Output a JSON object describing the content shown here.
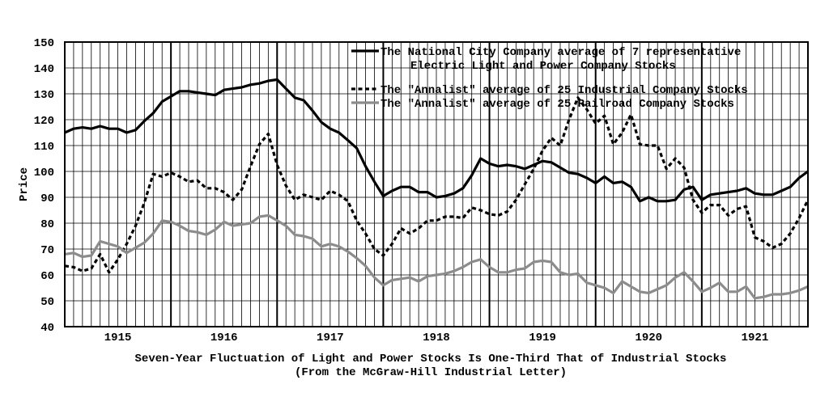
{
  "chart_data": {
    "type": "line",
    "title": "",
    "caption": [
      "Seven-Year Fluctuation of Light and Power Stocks Is One-Third That of Industrial Stocks",
      "(From the McGraw-Hill Industrial Letter)"
    ],
    "ylabel": "Price",
    "xlabel": "",
    "ylim": [
      40,
      150
    ],
    "xlim": [
      1914.5,
      1921.5
    ],
    "y_ticks": [
      "40",
      "50",
      "60",
      "70",
      "80",
      "90",
      "100",
      "110",
      "120",
      "130",
      "140",
      "150"
    ],
    "x_ticks": [
      "1915",
      "1916",
      "1917",
      "1918",
      "1919",
      "1920",
      "1921"
    ],
    "grid": true,
    "legend_position": "top-right",
    "x": [
      1914.5,
      1914.583,
      1914.667,
      1914.75,
      1914.833,
      1914.917,
      1915.0,
      1915.083,
      1915.167,
      1915.25,
      1915.333,
      1915.417,
      1915.5,
      1915.583,
      1915.667,
      1915.75,
      1915.833,
      1915.917,
      1916.0,
      1916.083,
      1916.167,
      1916.25,
      1916.333,
      1916.417,
      1916.5,
      1916.583,
      1916.667,
      1916.75,
      1916.833,
      1916.917,
      1917.0,
      1917.083,
      1917.167,
      1917.25,
      1917.333,
      1917.417,
      1917.5,
      1917.583,
      1917.667,
      1917.75,
      1917.833,
      1917.917,
      1918.0,
      1918.083,
      1918.167,
      1918.25,
      1918.333,
      1918.417,
      1918.5,
      1918.583,
      1918.667,
      1918.75,
      1918.833,
      1918.917,
      1919.0,
      1919.083,
      1919.167,
      1919.25,
      1919.333,
      1919.417,
      1919.5,
      1919.583,
      1919.667,
      1919.75,
      1919.833,
      1919.917,
      1920.0,
      1920.083,
      1920.167,
      1920.25,
      1920.333,
      1920.417,
      1920.5,
      1920.583,
      1920.667,
      1920.75,
      1920.833,
      1920.917,
      1921.0,
      1921.083,
      1921.167,
      1921.25,
      1921.333,
      1921.417,
      1921.5
    ],
    "series": [
      {
        "name": "The National City Company average of 7 representative Electric Light and Power Company Stocks",
        "legend_lines": [
          "The National City Company average of 7 representative",
          "Electric Light and Power Company Stocks"
        ],
        "color": "#000000",
        "dash": "solid",
        "values": [
          115,
          116.5,
          117,
          116.5,
          117.5,
          116.5,
          116.5,
          115,
          116,
          119.5,
          122.5,
          127,
          129,
          131,
          131,
          130.5,
          130,
          129.5,
          131.5,
          132,
          132.5,
          133.5,
          134,
          135,
          135.5,
          132,
          128.5,
          127.5,
          123.5,
          119,
          116.5,
          115,
          112,
          109,
          102,
          96,
          90.5,
          92.5,
          94,
          94,
          92,
          92,
          90,
          90.5,
          91.5,
          93.5,
          98.5,
          105,
          103,
          102,
          102.5,
          102,
          101,
          102.5,
          104,
          103.5,
          101.5,
          99.5,
          99,
          97.5,
          95.5,
          98,
          95.5,
          96,
          94,
          88.5,
          90,
          88.5,
          88.5,
          89,
          93,
          94,
          89,
          91,
          91.5,
          92,
          92.5,
          93.5,
          91.5,
          91,
          91,
          92.5,
          94,
          97.5,
          100
        ]
      },
      {
        "name": "The \"Annalist\" average of 25 Industrial Company Stocks",
        "legend_lines": [
          "The \"Annalist\" average of 25 Industrial Company Stocks"
        ],
        "color": "#000000",
        "dash": "dashed",
        "values": [
          63.5,
          63,
          61.5,
          62.5,
          68,
          61,
          66,
          72,
          79,
          88,
          99,
          98,
          99.5,
          98,
          96,
          96.5,
          93.5,
          93.5,
          92,
          89,
          93,
          102,
          110.5,
          114.5,
          102.5,
          94.5,
          89,
          91,
          90,
          89,
          92.5,
          91,
          88.5,
          81,
          76,
          70,
          67.5,
          72,
          78,
          76,
          78,
          81,
          81,
          82.5,
          82.5,
          82,
          86,
          85,
          83.5,
          83,
          84.5,
          89,
          95,
          101,
          108,
          113,
          110,
          120,
          128.5,
          124,
          118.5,
          121.5,
          110.5,
          115,
          122,
          110.5,
          110,
          110,
          101,
          105,
          101.5,
          89,
          84,
          87,
          87,
          83,
          85.5,
          86.5,
          74.5,
          73,
          70.5,
          72,
          76,
          82,
          89
        ]
      },
      {
        "name": "The \"Annalist\" average of 25 Railroad Company Stocks",
        "legend_lines": [
          "The \"Annalist\" average of 25 Railroad Company Stocks"
        ],
        "color": "#8c8c8c",
        "dash": "solid",
        "values": [
          68,
          68.5,
          67,
          67.5,
          73,
          72,
          71,
          68.5,
          70.5,
          72.5,
          76,
          81,
          80.5,
          79,
          77,
          76.5,
          75.5,
          77.5,
          80.5,
          79,
          79.5,
          80,
          82.5,
          83,
          81,
          79,
          75.5,
          75,
          74,
          71,
          72,
          71,
          69,
          66.5,
          63.5,
          59,
          56,
          58,
          58.5,
          59,
          57.5,
          59.5,
          60,
          60.5,
          61.5,
          63,
          65,
          66,
          63,
          61,
          61,
          62,
          62.5,
          65,
          65.5,
          65,
          61,
          60,
          60.5,
          57,
          56,
          55,
          53,
          57.5,
          55.5,
          53.5,
          53,
          54.5,
          56,
          59,
          61,
          57.5,
          53.5,
          55,
          57,
          53.5,
          53.5,
          55.5,
          51,
          51.5,
          52.5,
          52.5,
          53,
          54,
          55.5
        ]
      }
    ]
  }
}
